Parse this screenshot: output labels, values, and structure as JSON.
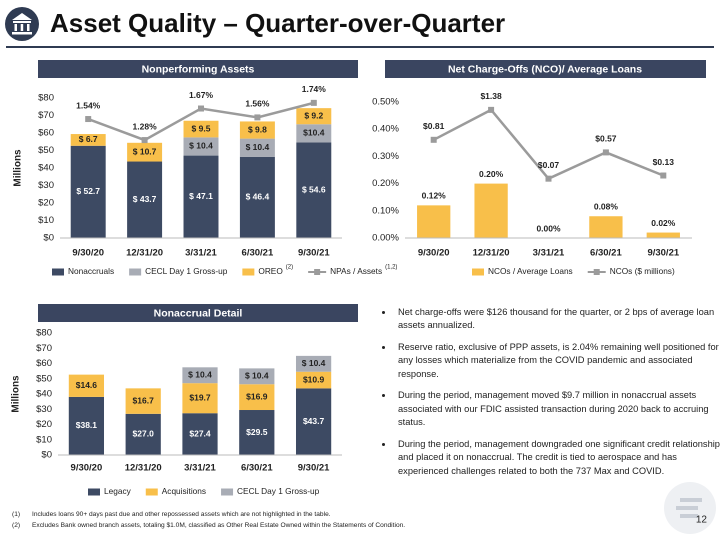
{
  "header": {
    "title": "Asset Quality – Quarter-over-Quarter"
  },
  "chart_data": [
    {
      "type": "bar",
      "stacked": true,
      "title": "Nonperforming Assets",
      "ylabel": "Millions",
      "categories": [
        "9/30/20",
        "12/31/20",
        "3/31/21",
        "6/30/21",
        "9/30/21"
      ],
      "series": [
        {
          "name": "Nonaccruals",
          "type": "bar",
          "color": "#3d4a63",
          "values": [
            52.7,
            43.7,
            47.1,
            46.4,
            54.6
          ],
          "value_labels": [
            "$ 52.7",
            "$ 43.7",
            "$ 47.1",
            "$ 46.4",
            "$ 54.6"
          ]
        },
        {
          "name": "CECL Day 1 Gross-up",
          "type": "bar",
          "color": "#a8acb5",
          "values": [
            null,
            null,
            10.4,
            10.4,
            10.4
          ],
          "value_labels": [
            null,
            null,
            "$ 10.4",
            "$ 10.4",
            "$10.4"
          ]
        },
        {
          "name": "OREO",
          "note": "(2)",
          "type": "bar",
          "color": "#f8bf4a",
          "values": [
            6.7,
            10.7,
            9.5,
            9.8,
            9.2
          ],
          "value_labels": [
            "$ 6.7",
            "$ 10.7",
            "$ 9.5",
            "$ 9.8",
            "$ 9.2"
          ]
        },
        {
          "name": "NPAs / Assets",
          "note": "(1,2)",
          "type": "line",
          "axis": "y2",
          "color": "#9b9b9b",
          "values": [
            1.54,
            1.28,
            1.67,
            1.56,
            1.74
          ],
          "value_labels": [
            "1.54%",
            "1.28%",
            "1.67%",
            "1.56%",
            "1.74%"
          ]
        }
      ],
      "ylim": [
        0,
        80
      ],
      "yticks": [
        {
          "value": 0,
          "label": "$0"
        },
        {
          "value": 10,
          "label": "$10"
        },
        {
          "value": 20,
          "label": "$20"
        },
        {
          "value": 30,
          "label": "$30"
        },
        {
          "value": 40,
          "label": "$40"
        },
        {
          "value": 50,
          "label": "$50"
        },
        {
          "value": 60,
          "label": "$60"
        },
        {
          "value": 70,
          "label": "$70"
        },
        {
          "value": 80,
          "label": "$80"
        }
      ],
      "y2lim": [
        0.07,
        1.8
      ]
    },
    {
      "type": "bar",
      "stacked": false,
      "title": "Net Charge-Offs (NCO)/ Average Loans",
      "categories": [
        "9/30/20",
        "12/31/20",
        "3/31/21",
        "6/30/21",
        "9/30/21"
      ],
      "series": [
        {
          "name": "NCOs / Average Loans",
          "type": "bar",
          "color": "#f8bf4a",
          "values": [
            0.12,
            0.2,
            0.0,
            0.08,
            0.02
          ],
          "value_labels": [
            "0.12%",
            "0.20%",
            "0.00%",
            "0.08%",
            "0.02%"
          ]
        },
        {
          "name": "NCOs ($ millions)",
          "type": "line",
          "axis": "y2",
          "color": "#9b9b9b",
          "values": [
            0.81,
            1.38,
            0.07,
            0.57,
            0.13
          ],
          "value_labels": [
            "$0.81",
            "$1.38",
            "$0.07",
            "$0.57",
            "$0.13"
          ]
        }
      ],
      "ylim": [
        0,
        0.5
      ],
      "yticks": [
        {
          "value": 0,
          "label": "0.00%"
        },
        {
          "value": 0.1,
          "label": "0.10%"
        },
        {
          "value": 0.2,
          "label": "0.20%"
        },
        {
          "value": 0.3,
          "label": "0.30%"
        },
        {
          "value": 0.4,
          "label": "0.40%"
        },
        {
          "value": 0.5,
          "label": "0.50%"
        }
      ],
      "y2lim": [
        -1.06,
        1.53
      ]
    },
    {
      "type": "bar",
      "stacked": true,
      "title": "Nonaccrual Detail",
      "ylabel": "Millions",
      "categories": [
        "9/30/20",
        "12/31/20",
        "3/31/21",
        "6/30/21",
        "9/30/21"
      ],
      "series": [
        {
          "name": "Legacy",
          "type": "bar",
          "color": "#3d4a63",
          "values": [
            38.1,
            27,
            27.4,
            29.5,
            43.7
          ],
          "value_labels": [
            "$38.1",
            "$27.0",
            "$27.4",
            "$29.5",
            "$43.7"
          ]
        },
        {
          "name": "Acquisitions",
          "type": "bar",
          "color": "#f8bf4a",
          "values": [
            14.6,
            16.7,
            19.7,
            16.9,
            10.9
          ],
          "value_labels": [
            "$14.6",
            "$16.7",
            "$19.7",
            "$16.9",
            "$10.9"
          ]
        },
        {
          "name": "CECL Day 1 Gross-up",
          "type": "bar",
          "color": "#a8acb5",
          "values": [
            null,
            null,
            10.4,
            10.4,
            10.4
          ],
          "value_labels": [
            null,
            null,
            "$ 10.4",
            "$ 10.4",
            "$ 10.4"
          ]
        }
      ],
      "ylim": [
        0,
        80
      ],
      "yticks": [
        {
          "value": 0,
          "label": "$0"
        },
        {
          "value": 10,
          "label": "$10"
        },
        {
          "value": 20,
          "label": "$20"
        },
        {
          "value": 30,
          "label": "$30"
        },
        {
          "value": 40,
          "label": "$40"
        },
        {
          "value": 50,
          "label": "$50"
        },
        {
          "value": 60,
          "label": "$60"
        },
        {
          "value": 70,
          "label": "$70"
        },
        {
          "value": 80,
          "label": "$80"
        }
      ]
    }
  ],
  "bullets": [
    "Net charge-offs were $126 thousand for the quarter, or 2 bps of average loan assets annualized.",
    "Reserve ratio, exclusive of PPP assets, is 2.04% remaining well positioned for any losses which materialize from the COVID pandemic and associated response.",
    "During the period, management moved $9.7 million in nonaccrual assets associated with our FDIC assisted transaction during 2020 back to accruing status.",
    "During the period, management downgraded one significant credit relationship and placed it on nonaccrual.  The credit is tied to aerospace and has experienced challenges related to both the 737 Max and COVID."
  ],
  "footnotes": [
    {
      "marker": "(1)",
      "text": "Includes loans 90+ days past due and other repossessed assets which are not highlighted in the table."
    },
    {
      "marker": "(2)",
      "text": "Excludes Bank owned branch assets, totaling $1.0M, classified as Other Real Estate Owned within the Statements of Condition."
    }
  ],
  "page_number": "12"
}
